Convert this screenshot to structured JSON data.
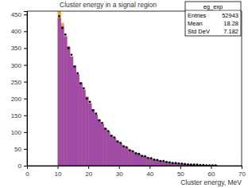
{
  "chart_data": {
    "type": "histogram",
    "title": "Cluster energy in a signal region",
    "x_label": "Cluster energy, MeV",
    "bins": [
      10,
      11,
      12,
      13,
      14,
      15,
      16,
      17,
      18,
      19,
      20,
      21,
      22,
      23,
      24,
      25,
      26,
      27,
      28,
      29,
      30,
      31,
      32,
      33,
      34,
      35,
      36,
      37,
      38,
      39,
      40,
      41,
      42,
      43,
      44,
      45,
      46,
      47,
      48,
      49,
      50,
      51,
      52,
      53,
      54,
      55,
      56,
      57,
      58,
      59,
      60,
      61,
      62
    ],
    "series": [
      {
        "color": "#f5a030",
        "type": "bar",
        "values": [
          460,
          425,
          385,
          355,
          325,
          298,
          272,
          248,
          226,
          205,
          186,
          168,
          152,
          138,
          124,
          112,
          101,
          91,
          82,
          74,
          66,
          59,
          53,
          47,
          42,
          38,
          34,
          30,
          27,
          24,
          21,
          19,
          17,
          15,
          13,
          11,
          10,
          9,
          8,
          7,
          6,
          5,
          4,
          4,
          3,
          3,
          2,
          2,
          2,
          1,
          1,
          1
        ]
      },
      {
        "color": "#a04ca6",
        "type": "bar",
        "values": [
          440,
          415,
          385,
          355,
          325,
          298,
          272,
          248,
          226,
          205,
          186,
          168,
          152,
          138,
          124,
          112,
          101,
          91,
          82,
          74,
          66,
          59,
          53,
          47,
          42,
          38,
          34,
          30,
          27,
          24,
          21,
          19,
          17,
          15,
          13,
          11,
          10,
          9,
          8,
          7,
          6,
          5,
          4,
          4,
          3,
          3,
          2,
          2,
          2,
          1,
          1,
          1
        ]
      },
      {
        "color": "#000000",
        "type": "scatter",
        "marker": "circle",
        "values": [
          445,
          410,
          390,
          350,
          330,
          295,
          275,
          245,
          230,
          200,
          190,
          165,
          155,
          135,
          127,
          110,
          103,
          89,
          84,
          72,
          68,
          58,
          55,
          46,
          43,
          37,
          35,
          29,
          28,
          23,
          22,
          18,
          17,
          14,
          14,
          11,
          10,
          8,
          8,
          7,
          6,
          5,
          4,
          3,
          3,
          3,
          2,
          2,
          1,
          1,
          1,
          1
        ]
      }
    ],
    "xlim": [
      0,
      70
    ],
    "xticks": [
      0,
      10,
      20,
      30,
      40,
      50,
      60,
      70
    ],
    "ylim": [
      0,
      460
    ],
    "yticks": [
      0,
      50,
      100,
      150,
      200,
      250,
      300,
      350,
      400,
      450
    ],
    "stats": {
      "name": "eg_exp",
      "rows": [
        {
          "label": "Entries",
          "value": 52943
        },
        {
          "label": "Mean",
          "value": 18.28
        },
        {
          "label": "Std DeV",
          "value": 7.182
        }
      ]
    }
  }
}
